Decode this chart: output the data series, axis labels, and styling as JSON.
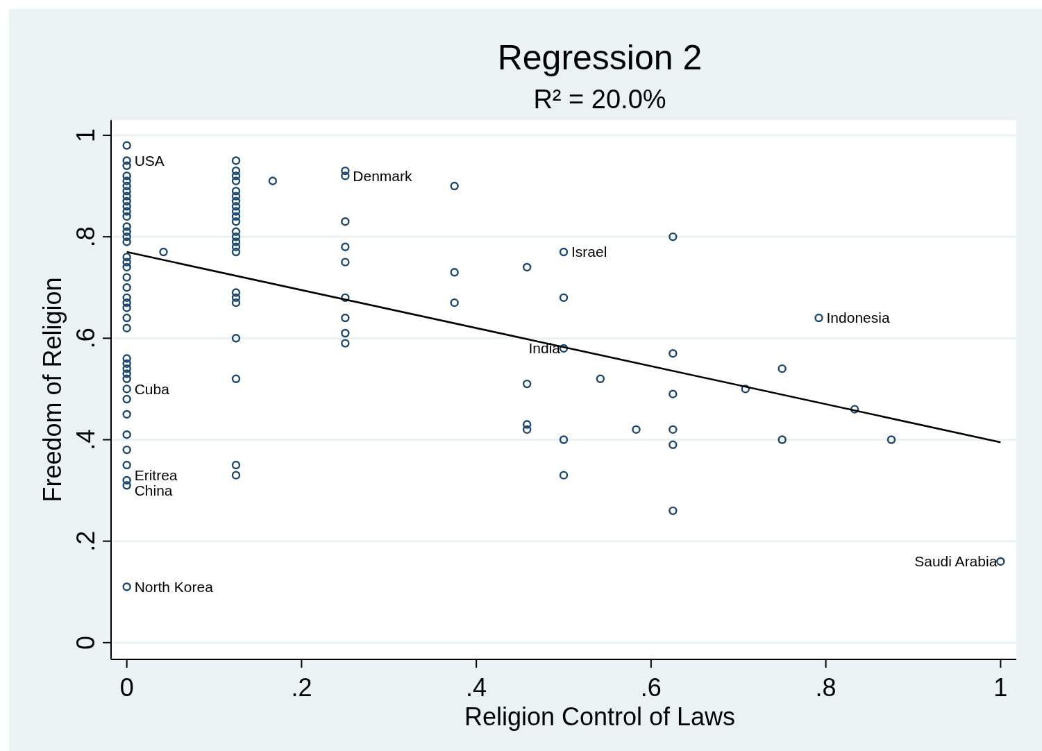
{
  "chart_data": {
    "type": "scatter",
    "title": "Regression 2",
    "subtitle": "R² = 20.0%",
    "xlabel": "Religion Control of Laws",
    "ylabel": "Freedom of Religion",
    "xlim": [
      -0.018,
      1.018
    ],
    "ylim": [
      -0.033,
      1.03
    ],
    "xticks": [
      0,
      {
        "value": 0.2,
        "label": ".2"
      },
      {
        "value": 0.4,
        "label": ".4"
      },
      {
        "value": 0.6,
        "label": ".6"
      },
      {
        "value": 0.8,
        "label": ".8"
      },
      1
    ],
    "yticks": [
      0,
      {
        "value": 0.2,
        "label": ".2"
      },
      {
        "value": 0.4,
        "label": ".4"
      },
      {
        "value": 0.6,
        "label": ".6"
      },
      {
        "value": 0.8,
        "label": ".8"
      },
      1
    ],
    "grid": "y",
    "marker": "circle",
    "series": [
      {
        "color": "#1a476f",
        "x": [
          0,
          0,
          0,
          0,
          0,
          0,
          0,
          0,
          0,
          0,
          0,
          0,
          0,
          0,
          0,
          0,
          0,
          0,
          0,
          0,
          0,
          0,
          0,
          0,
          0,
          0,
          0,
          0,
          0,
          0,
          0,
          0,
          0,
          0,
          0,
          0,
          0,
          0,
          0,
          0,
          0.042,
          0.125,
          0.125,
          0.125,
          0.125,
          0.125,
          0.125,
          0.125,
          0.125,
          0.125,
          0.125,
          0.125,
          0.125,
          0.125,
          0.125,
          0.125,
          0.125,
          0.125,
          0.125,
          0.125,
          0.125,
          0.125,
          0.125,
          0.125,
          0.167,
          0.25,
          0.25,
          0.25,
          0.25,
          0.25,
          0.25,
          0.25,
          0.25,
          0.25,
          0.375,
          0.375,
          0.375,
          0.458,
          0.458,
          0.458,
          0.458,
          0.5,
          0.5,
          0.5,
          0.5,
          0.5,
          0.542,
          0.583,
          0.625,
          0.625,
          0.625,
          0.625,
          0.625,
          0.625,
          0.708,
          0.75,
          0.75,
          0.792,
          0.833,
          0.875,
          1
        ],
        "values": [
          0.98,
          0.95,
          0.94,
          0.92,
          0.91,
          0.9,
          0.89,
          0.88,
          0.87,
          0.86,
          0.85,
          0.84,
          0.82,
          0.81,
          0.8,
          0.79,
          0.76,
          0.75,
          0.74,
          0.72,
          0.7,
          0.68,
          0.67,
          0.66,
          0.64,
          0.62,
          0.56,
          0.55,
          0.54,
          0.53,
          0.52,
          0.5,
          0.48,
          0.45,
          0.41,
          0.38,
          0.35,
          0.32,
          0.31,
          0.11,
          0.77,
          0.95,
          0.93,
          0.92,
          0.91,
          0.89,
          0.88,
          0.87,
          0.86,
          0.85,
          0.84,
          0.83,
          0.81,
          0.8,
          0.79,
          0.78,
          0.77,
          0.69,
          0.68,
          0.67,
          0.6,
          0.52,
          0.35,
          0.33,
          0.91,
          0.93,
          0.92,
          0.83,
          0.78,
          0.75,
          0.68,
          0.64,
          0.61,
          0.59,
          0.9,
          0.73,
          0.67,
          0.74,
          0.51,
          0.43,
          0.42,
          0.77,
          0.68,
          0.58,
          0.4,
          0.33,
          0.52,
          0.42,
          0.8,
          0.57,
          0.49,
          0.42,
          0.39,
          0.26,
          0.5,
          0.54,
          0.4,
          0.64,
          0.46,
          0.4,
          0.16
        ]
      },
      {
        "type": "line",
        "color": "#000000",
        "marker": "none",
        "line_style": "solid",
        "x": [
          0,
          1
        ],
        "values": [
          0.77,
          0.395
        ]
      }
    ],
    "annotations": [
      {
        "text": "USA",
        "x": 0,
        "y": 0.95
      },
      {
        "text": "Denmark",
        "x": 0.25,
        "y": 0.92
      },
      {
        "text": "Israel",
        "x": 0.5,
        "y": 0.77
      },
      {
        "text": "Indonesia",
        "x": 0.792,
        "y": 0.64
      },
      {
        "text": "India",
        "x": 0.5,
        "y": 0.58
      },
      {
        "text": "Cuba",
        "x": 0,
        "y": 0.5
      },
      {
        "text": "Eritrea",
        "x": 0,
        "y": 0.32
      },
      {
        "text": "China",
        "x": 0,
        "y": 0.31
      },
      {
        "text": "North Korea",
        "x": 0,
        "y": 0.11
      },
      {
        "text": "Saudi Arabia",
        "x": 1,
        "y": 0.16
      }
    ]
  }
}
